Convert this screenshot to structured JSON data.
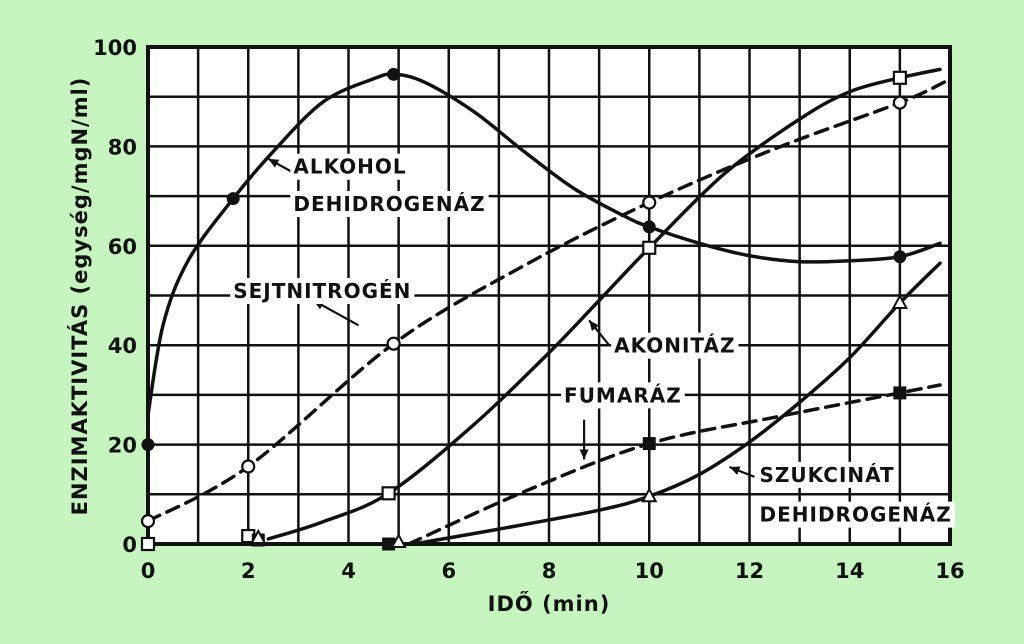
{
  "chart_data": {
    "type": "line",
    "xlabel": "IDŐ (min)",
    "ylabel": "ENZIMAKTIVITÁS (egység/mgN/ml)",
    "xlim": [
      0,
      16
    ],
    "ylim": [
      0,
      100
    ],
    "x_ticks": [
      0,
      2,
      4,
      6,
      8,
      10,
      12,
      14,
      16
    ],
    "y_ticks": [
      0,
      20,
      40,
      60,
      80,
      100
    ],
    "grid": true,
    "series": [
      {
        "name": "ALKOHOL DEHIDROGENÁZ",
        "style": "solid",
        "marker": "filled-circle",
        "points": [
          [
            0,
            20
          ],
          [
            1.7,
            69.5
          ],
          [
            4.9,
            94.5
          ],
          [
            10,
            63.8
          ],
          [
            15,
            57.8
          ]
        ],
        "curve": [
          [
            0,
            26
          ],
          [
            0.3,
            44
          ],
          [
            0.8,
            57
          ],
          [
            1.7,
            69.5
          ],
          [
            2.5,
            79
          ],
          [
            3.5,
            89
          ],
          [
            4.5,
            93.6
          ],
          [
            4.9,
            94.5
          ],
          [
            5.5,
            93
          ],
          [
            6.5,
            87
          ],
          [
            7.5,
            79
          ],
          [
            8.5,
            71.5
          ],
          [
            9.5,
            66
          ],
          [
            10,
            63.8
          ],
          [
            11,
            60.5
          ],
          [
            12,
            58
          ],
          [
            13,
            56.8
          ],
          [
            14,
            57
          ],
          [
            15,
            57.8
          ],
          [
            15.8,
            60.5
          ]
        ]
      },
      {
        "name": "SEJTNITROGÉN",
        "style": "dashed",
        "marker": "open-circle",
        "points": [
          [
            0,
            4.6
          ],
          [
            2,
            15.6
          ],
          [
            4.9,
            40.3
          ],
          [
            10,
            68.7
          ],
          [
            15,
            88.8
          ]
        ],
        "curve": [
          [
            0,
            4.6
          ],
          [
            2,
            15.6
          ],
          [
            4.9,
            40.3
          ],
          [
            7.5,
            56
          ],
          [
            10,
            68.7
          ],
          [
            12.5,
            79.5
          ],
          [
            15,
            88.8
          ],
          [
            15.9,
            93
          ]
        ]
      },
      {
        "name": "AKONITÁZ",
        "style": "solid",
        "marker": "open-square",
        "points": [
          [
            0,
            0
          ],
          [
            2,
            1.6
          ],
          [
            4.8,
            10.2
          ],
          [
            10,
            59.6
          ],
          [
            15,
            93.8
          ]
        ],
        "curve": [
          [
            2.4,
            1
          ],
          [
            3.5,
            4.5
          ],
          [
            4.8,
            10.2
          ],
          [
            6.5,
            24
          ],
          [
            8,
            38.5
          ],
          [
            9,
            49
          ],
          [
            10,
            59.6
          ],
          [
            11.5,
            74.5
          ],
          [
            13,
            85.5
          ],
          [
            14,
            91
          ],
          [
            15,
            93.8
          ],
          [
            15.8,
            95.5
          ]
        ]
      },
      {
        "name": "FUMARÁZ",
        "style": "dashed",
        "marker": "filled-square",
        "points": [
          [
            2.2,
            0.8
          ],
          [
            4.8,
            0
          ],
          [
            10,
            20.2
          ],
          [
            15,
            30.4
          ]
        ],
        "curve": [
          [
            5.2,
            0
          ],
          [
            7.5,
            10.5
          ],
          [
            10,
            20.2
          ],
          [
            12.5,
            25.5
          ],
          [
            15,
            30.4
          ],
          [
            15.8,
            32
          ]
        ]
      },
      {
        "name": "SZUKCINÁT DEHIDROGENÁZ",
        "style": "solid",
        "marker": "open-triangle",
        "points": [
          [
            2.2,
            1.2
          ],
          [
            5,
            0.4
          ],
          [
            10,
            9.6
          ],
          [
            15,
            48.5
          ]
        ],
        "curve": [
          [
            5.3,
            0
          ],
          [
            7,
            3
          ],
          [
            9,
            6.8
          ],
          [
            10,
            9.6
          ],
          [
            11,
            14
          ],
          [
            12,
            20.5
          ],
          [
            13,
            28.5
          ],
          [
            14,
            37.5
          ],
          [
            15,
            48.5
          ],
          [
            15.8,
            56.5
          ]
        ]
      }
    ],
    "annotations": [
      {
        "text": "ALKOHOL",
        "x": 2.9,
        "y": 74.5
      },
      {
        "text": "DEHIDROGENÁZ",
        "x": 2.9,
        "y": 67
      },
      {
        "text": "SEJTNITROGÉN",
        "x": 1.7,
        "y": 49.5
      },
      {
        "text": "AKONITÁZ",
        "x": 9.3,
        "y": 38.5
      },
      {
        "text": "FUMARÁZ",
        "x": 8.3,
        "y": 28.5
      },
      {
        "text": "SZUKCINÁT",
        "x": 12.2,
        "y": 12.5
      },
      {
        "text": "DEHIDROGENÁZ",
        "x": 12.2,
        "y": 4.5
      }
    ],
    "pointers": [
      {
        "from": [
          2.85,
          75
        ],
        "to": [
          2.4,
          77.5
        ]
      },
      {
        "from": [
          4.2,
          44
        ],
        "to": [
          3.3,
          49
        ]
      },
      {
        "from": [
          9.2,
          40
        ],
        "to": [
          8.8,
          45
        ]
      },
      {
        "from": [
          8.7,
          25
        ],
        "to": [
          8.7,
          17
        ]
      },
      {
        "from": [
          12.1,
          13.5
        ],
        "to": [
          11.6,
          15.5
        ]
      }
    ]
  }
}
